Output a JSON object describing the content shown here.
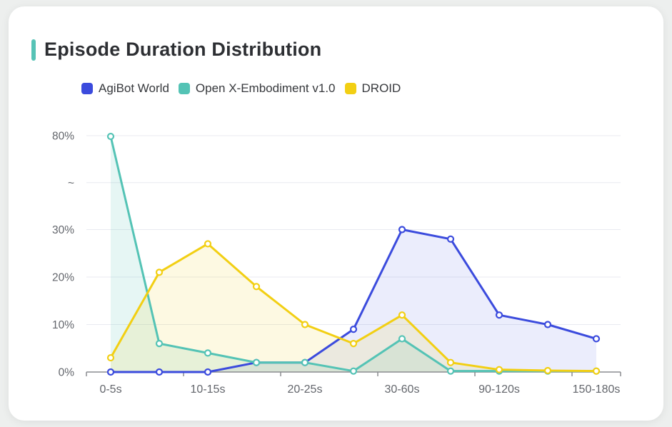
{
  "page": {
    "background_color": "#edefee",
    "card_background_color": "#ffffff"
  },
  "header": {
    "title": "Episode Duration Distribution",
    "accent_color": "#56c3b6"
  },
  "chart_data": {
    "type": "line",
    "title": "Episode Duration Distribution",
    "legend_position": "top",
    "grid": true,
    "x_axis": {
      "num_points": 11,
      "visible_tick_labels": [
        {
          "index": 0,
          "label": "0-5s"
        },
        {
          "index": 2,
          "label": "10-15s"
        },
        {
          "index": 4,
          "label": "20-25s"
        },
        {
          "index": 6,
          "label": "30-60s"
        },
        {
          "index": 8,
          "label": "90-120s"
        },
        {
          "index": 10,
          "label": "150-180s"
        }
      ]
    },
    "y_axis": {
      "unit": "%",
      "tick_labels": [
        "0%",
        "10%",
        "20%",
        "30%",
        "~",
        "80%"
      ],
      "tick_values": [
        0,
        10,
        20,
        30,
        null,
        80
      ],
      "axis_break": {
        "between": [
          30,
          80
        ],
        "symbol": "~"
      }
    },
    "series": [
      {
        "name": "AgiBot World",
        "color": "#3b4bdd",
        "fill_color": "rgba(59,75,221,0.10)",
        "values": [
          0,
          0,
          0,
          2,
          2,
          9,
          30,
          28,
          12,
          10,
          7
        ]
      },
      {
        "name": "Open X-Embodiment v1.0",
        "color": "#54c3b5",
        "fill_color": "rgba(84,195,181,0.15)",
        "values": [
          79.6,
          6,
          4,
          2,
          2,
          0.2,
          7,
          0.2,
          0.2,
          0.2,
          0.2
        ]
      },
      {
        "name": "DROID",
        "color": "#f2cf13",
        "fill_color": "rgba(242,207,19,0.12)",
        "values": [
          3,
          21,
          27,
          18,
          10,
          6,
          12,
          2,
          0.5,
          0.3,
          0.2
        ]
      }
    ],
    "style": {
      "axis_line_color": "#8a8c90",
      "grid_line_color": "#e9eaf0",
      "axis_label_color": "#63666c",
      "marker_fill": "#ffffff"
    }
  }
}
